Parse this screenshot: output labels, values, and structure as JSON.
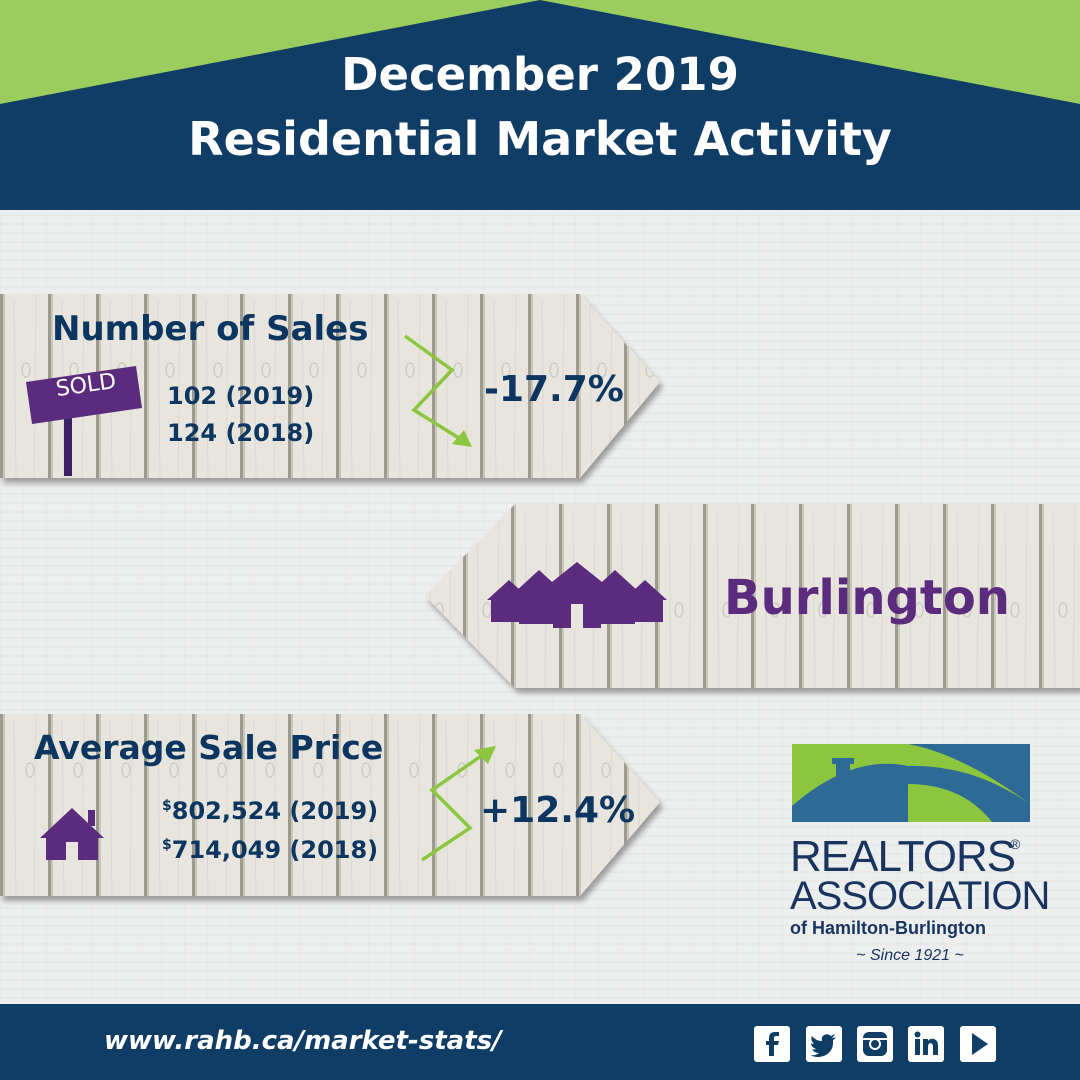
{
  "header": {
    "title_line1": "December 2019",
    "title_line2": "Residential Market Activity"
  },
  "colors": {
    "navy": "#0c3560",
    "green": "#9bcc5e",
    "purple": "#5b2c7d",
    "plank": "#e8e6df",
    "logo_blue": "#2d6a96",
    "logo_green": "#8cc63f"
  },
  "sales": {
    "title": "Number of Sales",
    "sign_text": "SOLD",
    "value_2019": "102 (2019)",
    "value_2018": "124 (2018)",
    "change": "-17.7%",
    "trend": "down"
  },
  "location": {
    "name": "Burlington",
    "icon": "houses-icon"
  },
  "price": {
    "title": "Average Sale Price",
    "currency_symbol": "$",
    "value_2019": "802,524 (2019)",
    "value_2018": "714,049 (2018)",
    "change": "+12.4%",
    "trend": "up",
    "icon": "house-icon"
  },
  "logo": {
    "line1": "REALTORS",
    "registered": "®",
    "line2": "ASSOCIATION",
    "line3": "of Hamilton-Burlington",
    "since": "~  Since 1921  ~"
  },
  "footer": {
    "url": "www.rahb.ca/market-stats/",
    "social": [
      "facebook-icon",
      "twitter-icon",
      "instagram-icon",
      "linkedin-icon",
      "youtube-icon"
    ]
  }
}
